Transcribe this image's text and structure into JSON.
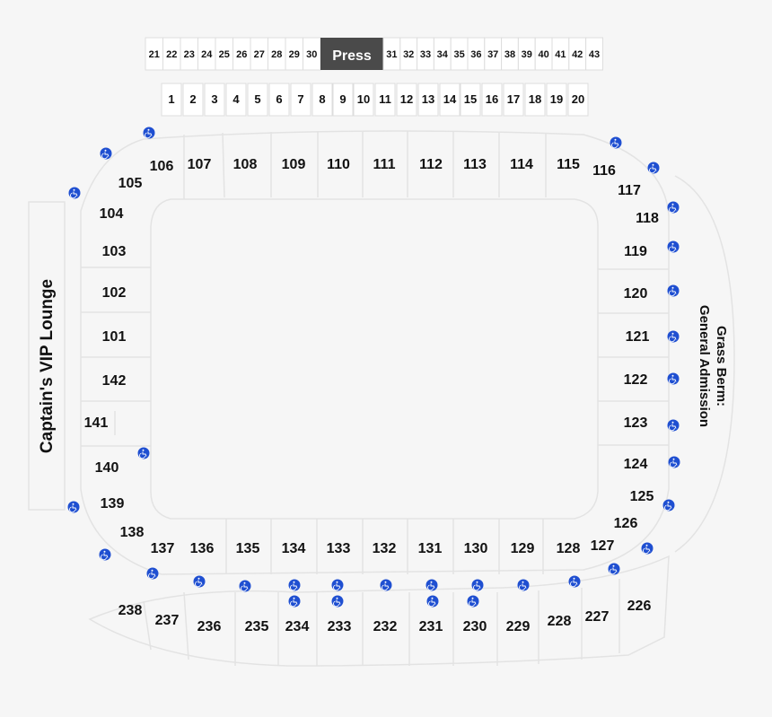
{
  "press_box": {
    "label": "Press",
    "fill": "#4a4a4a",
    "left_boxes": [
      "21",
      "22",
      "23",
      "24",
      "25",
      "26",
      "27",
      "28",
      "29",
      "30"
    ],
    "right_boxes": [
      "31",
      "32",
      "33",
      "34",
      "35",
      "36",
      "37",
      "38",
      "39",
      "40",
      "41",
      "42",
      "43"
    ]
  },
  "suites_row": [
    "1",
    "2",
    "3",
    "4",
    "5",
    "6",
    "7",
    "8",
    "9",
    "10",
    "11",
    "12",
    "13",
    "14",
    "15",
    "16",
    "17",
    "18",
    "19",
    "20"
  ],
  "captains_lounge": "Captain's VIP Lounge",
  "grass_berm": [
    "Grass Berm:",
    "General Admission"
  ],
  "accessibility": {
    "icon": "wheelchair-icon",
    "color": "#1f4fd1"
  },
  "colors": {
    "background": "#f6f6f6",
    "outline": "#e3e3e3",
    "text": "#111111"
  },
  "sections": {
    "north": [
      "105",
      "106",
      "107",
      "108",
      "109",
      "110",
      "111",
      "112",
      "113",
      "114",
      "115",
      "116",
      "117"
    ],
    "east": [
      "118",
      "119",
      "120",
      "121",
      "122",
      "123",
      "124",
      "125",
      "126",
      "127"
    ],
    "south_lower": [
      "128",
      "129",
      "130",
      "131",
      "132",
      "133",
      "134",
      "135",
      "136",
      "137",
      "138"
    ],
    "west": [
      "139",
      "140",
      "141",
      "142",
      "101",
      "102",
      "103",
      "104"
    ],
    "upper": [
      "226",
      "227",
      "228",
      "229",
      "230",
      "231",
      "232",
      "233",
      "234",
      "235",
      "236",
      "237",
      "238"
    ]
  }
}
